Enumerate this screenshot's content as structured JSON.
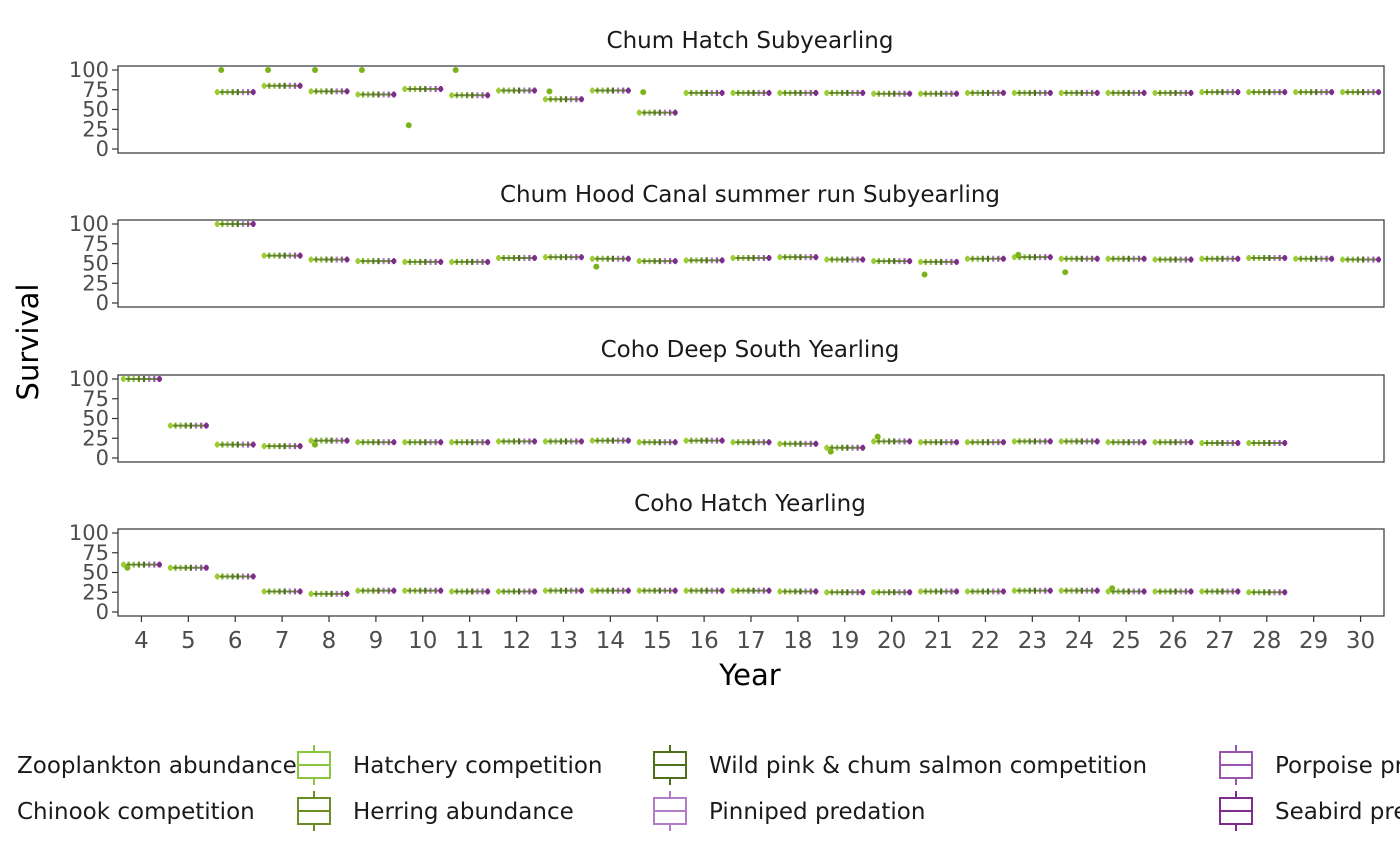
{
  "chart_data": {
    "type": "scatter",
    "xlabel": "Year",
    "ylabel": "Survival",
    "ylim": [
      0,
      100
    ],
    "yticks": [
      0,
      25,
      50,
      75,
      100
    ],
    "xlim": [
      3.5,
      30.5
    ],
    "xticks": [
      "4",
      "5",
      "6",
      "7",
      "8",
      "9",
      "10",
      "11",
      "12",
      "13",
      "14",
      "15",
      "16",
      "17",
      "18",
      "19",
      "20",
      "21",
      "22",
      "23",
      "24",
      "25",
      "26",
      "27",
      "28",
      "29",
      "30"
    ],
    "grid": false,
    "legend_position": "bottom",
    "legend": [
      {
        "label": "Zooplankton abundance",
        "color": "#9ACD32"
      },
      {
        "label": "Chinook competition",
        "color": "#7BB31A"
      },
      {
        "label": "Hatchery competition",
        "color": "#8CC63F"
      },
      {
        "label": "Herring abundance",
        "color": "#6B8E23"
      },
      {
        "label": "Wild pink & chum salmon competition",
        "color": "#4F6F1A"
      },
      {
        "label": "Pinniped predation",
        "color": "#B07CC6"
      },
      {
        "label": "Porpoise predation",
        "color": "#9A55B0"
      },
      {
        "label": "Seabird predation",
        "color": "#7E2D8E"
      }
    ],
    "series_colors": [
      "#9ACD32",
      "#7BB31A",
      "#8CC63F",
      "#6B8E23",
      "#4F6F1A",
      "#B07CC6",
      "#9A55B0",
      "#7E2D8E"
    ],
    "panels": [
      {
        "title": "Chum Hatch Subyearling",
        "medians": [
          {
            "x": 6,
            "y": 72
          },
          {
            "x": 7,
            "y": 80
          },
          {
            "x": 8,
            "y": 73
          },
          {
            "x": 9,
            "y": 69
          },
          {
            "x": 10,
            "y": 76
          },
          {
            "x": 11,
            "y": 68
          },
          {
            "x": 12,
            "y": 74
          },
          {
            "x": 13,
            "y": 63
          },
          {
            "x": 14,
            "y": 74
          },
          {
            "x": 15,
            "y": 46
          },
          {
            "x": 16,
            "y": 71
          },
          {
            "x": 17,
            "y": 71
          },
          {
            "x": 18,
            "y": 71
          },
          {
            "x": 19,
            "y": 71
          },
          {
            "x": 20,
            "y": 70
          },
          {
            "x": 21,
            "y": 70
          },
          {
            "x": 22,
            "y": 71
          },
          {
            "x": 23,
            "y": 71
          },
          {
            "x": 24,
            "y": 71
          },
          {
            "x": 25,
            "y": 71
          },
          {
            "x": 26,
            "y": 71
          },
          {
            "x": 27,
            "y": 72
          },
          {
            "x": 28,
            "y": 72
          },
          {
            "x": 29,
            "y": 72
          },
          {
            "x": 30,
            "y": 72
          }
        ],
        "outliers": [
          {
            "x": 6,
            "y": 100
          },
          {
            "x": 7,
            "y": 100
          },
          {
            "x": 8,
            "y": 100
          },
          {
            "x": 9,
            "y": 100
          },
          {
            "x": 10,
            "y": 30
          },
          {
            "x": 11,
            "y": 100
          },
          {
            "x": 13,
            "y": 73
          },
          {
            "x": 15,
            "y": 72
          }
        ]
      },
      {
        "title": "Chum Hood Canal summer run Subyearling",
        "medians": [
          {
            "x": 6,
            "y": 100
          },
          {
            "x": 7,
            "y": 60
          },
          {
            "x": 8,
            "y": 55
          },
          {
            "x": 9,
            "y": 53
          },
          {
            "x": 10,
            "y": 52
          },
          {
            "x": 11,
            "y": 52
          },
          {
            "x": 12,
            "y": 57
          },
          {
            "x": 13,
            "y": 58
          },
          {
            "x": 14,
            "y": 56
          },
          {
            "x": 15,
            "y": 53
          },
          {
            "x": 16,
            "y": 54
          },
          {
            "x": 17,
            "y": 57
          },
          {
            "x": 18,
            "y": 58
          },
          {
            "x": 19,
            "y": 55
          },
          {
            "x": 20,
            "y": 53
          },
          {
            "x": 21,
            "y": 52
          },
          {
            "x": 22,
            "y": 56
          },
          {
            "x": 23,
            "y": 58
          },
          {
            "x": 24,
            "y": 56
          },
          {
            "x": 25,
            "y": 56
          },
          {
            "x": 26,
            "y": 55
          },
          {
            "x": 27,
            "y": 56
          },
          {
            "x": 28,
            "y": 57
          },
          {
            "x": 29,
            "y": 56
          },
          {
            "x": 30,
            "y": 55
          }
        ],
        "outliers": [
          {
            "x": 14,
            "y": 46
          },
          {
            "x": 21,
            "y": 36
          },
          {
            "x": 24,
            "y": 39
          },
          {
            "x": 23,
            "y": 61
          }
        ]
      },
      {
        "title": "Coho Deep South Yearling",
        "medians": [
          {
            "x": 4,
            "y": 100
          },
          {
            "x": 5,
            "y": 41
          },
          {
            "x": 6,
            "y": 17
          },
          {
            "x": 7,
            "y": 15
          },
          {
            "x": 8,
            "y": 22
          },
          {
            "x": 9,
            "y": 20
          },
          {
            "x": 10,
            "y": 20
          },
          {
            "x": 11,
            "y": 20
          },
          {
            "x": 12,
            "y": 21
          },
          {
            "x": 13,
            "y": 21
          },
          {
            "x": 14,
            "y": 22
          },
          {
            "x": 15,
            "y": 20
          },
          {
            "x": 16,
            "y": 22
          },
          {
            "x": 17,
            "y": 20
          },
          {
            "x": 18,
            "y": 18
          },
          {
            "x": 19,
            "y": 13
          },
          {
            "x": 20,
            "y": 21
          },
          {
            "x": 21,
            "y": 20
          },
          {
            "x": 22,
            "y": 20
          },
          {
            "x": 23,
            "y": 21
          },
          {
            "x": 24,
            "y": 21
          },
          {
            "x": 25,
            "y": 20
          },
          {
            "x": 26,
            "y": 20
          },
          {
            "x": 27,
            "y": 19
          },
          {
            "x": 28,
            "y": 19
          }
        ],
        "outliers": [
          {
            "x": 8,
            "y": 17
          },
          {
            "x": 19,
            "y": 8
          },
          {
            "x": 20,
            "y": 27
          }
        ]
      },
      {
        "title": "Coho Hatch Yearling",
        "medians": [
          {
            "x": 4,
            "y": 60
          },
          {
            "x": 5,
            "y": 56
          },
          {
            "x": 6,
            "y": 45
          },
          {
            "x": 7,
            "y": 26
          },
          {
            "x": 8,
            "y": 23
          },
          {
            "x": 9,
            "y": 27
          },
          {
            "x": 10,
            "y": 27
          },
          {
            "x": 11,
            "y": 26
          },
          {
            "x": 12,
            "y": 26
          },
          {
            "x": 13,
            "y": 27
          },
          {
            "x": 14,
            "y": 27
          },
          {
            "x": 15,
            "y": 27
          },
          {
            "x": 16,
            "y": 27
          },
          {
            "x": 17,
            "y": 27
          },
          {
            "x": 18,
            "y": 26
          },
          {
            "x": 19,
            "y": 25
          },
          {
            "x": 20,
            "y": 25
          },
          {
            "x": 21,
            "y": 26
          },
          {
            "x": 22,
            "y": 26
          },
          {
            "x": 23,
            "y": 27
          },
          {
            "x": 24,
            "y": 27
          },
          {
            "x": 25,
            "y": 26
          },
          {
            "x": 26,
            "y": 26
          },
          {
            "x": 27,
            "y": 26
          },
          {
            "x": 28,
            "y": 25
          }
        ],
        "outliers": [
          {
            "x": 4,
            "y": 56
          },
          {
            "x": 25,
            "y": 30
          }
        ]
      }
    ]
  }
}
